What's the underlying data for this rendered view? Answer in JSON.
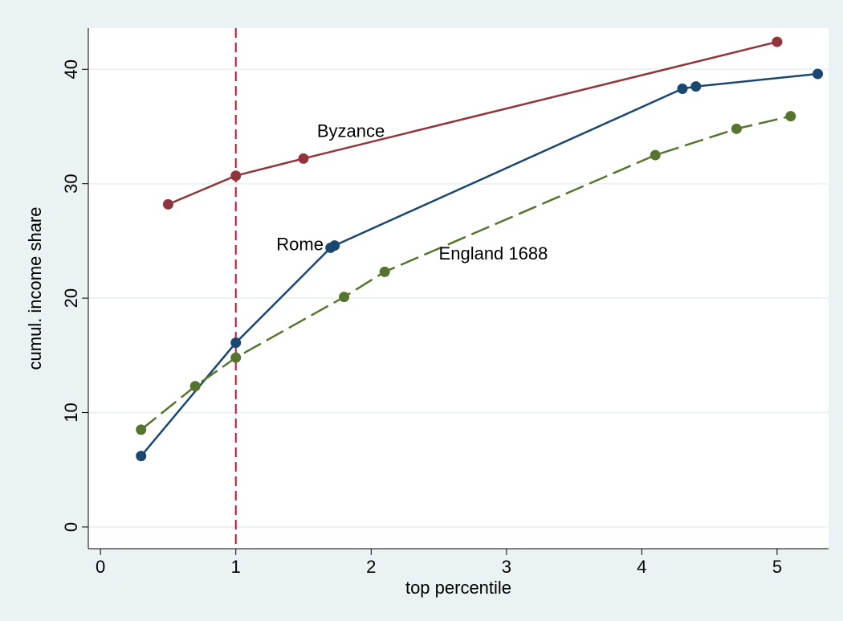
{
  "chart_data": {
    "type": "line",
    "xlabel": "top percentile",
    "ylabel": "cumul. income share",
    "xlim": [
      -0.09,
      5.38
    ],
    "ylim": [
      -1.9,
      43.6
    ],
    "xticks": [
      0,
      1,
      2,
      3,
      4,
      5
    ],
    "yticks": [
      0,
      10,
      20,
      30,
      40
    ],
    "grid": true,
    "reference_line": {
      "x": 1,
      "color": "#c8102e"
    },
    "series": [
      {
        "name": "Byzance",
        "color": "#90353b",
        "dash": false,
        "x": [
          0.5,
          1,
          1.5,
          5
        ],
        "values": [
          28.2,
          30.7,
          32.2,
          42.4
        ]
      },
      {
        "name": "Rome",
        "color": "#1a476f",
        "dash": false,
        "x": [
          0.3,
          1,
          1.7,
          1.73,
          4.3,
          4.4,
          5.3
        ],
        "values": [
          6.2,
          16.1,
          24.4,
          24.6,
          38.3,
          38.5,
          39.6
        ]
      },
      {
        "name": "England 1688",
        "color": "#55752f",
        "dash": true,
        "x": [
          0.3,
          0.7,
          1,
          1.8,
          2.1,
          4.1,
          4.7,
          5.1
        ],
        "values": [
          8.5,
          12.3,
          14.8,
          20.1,
          22.3,
          32.5,
          34.8,
          35.9
        ]
      }
    ]
  }
}
